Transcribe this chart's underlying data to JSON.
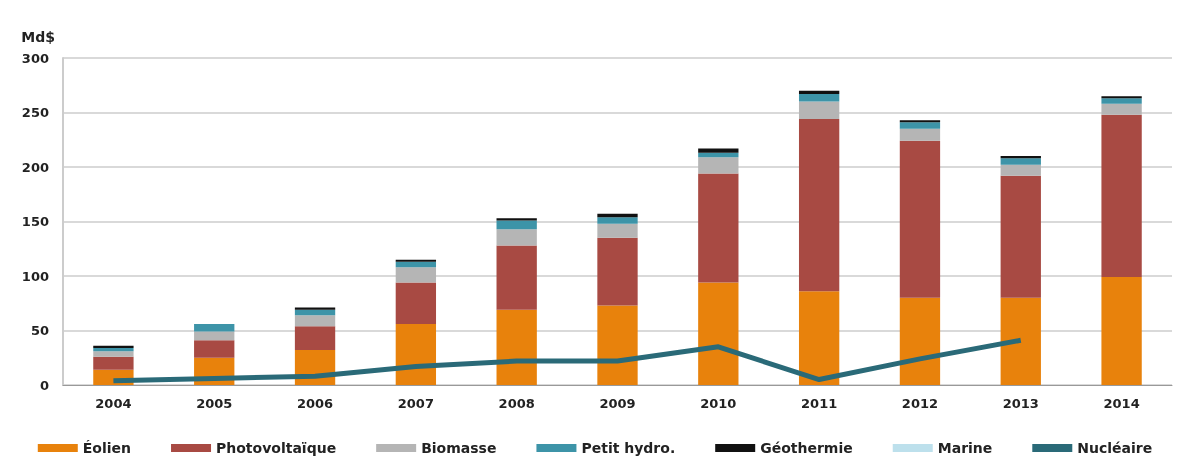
{
  "chart_data": {
    "type": "bar",
    "stacked": true,
    "ylabel": "Md$",
    "categories": [
      "2004",
      "2005",
      "2006",
      "2007",
      "2008",
      "2009",
      "2010",
      "2011",
      "2012",
      "2013",
      "2014"
    ],
    "ylim": [
      0,
      300
    ],
    "yticks": [
      0,
      50,
      100,
      150,
      200,
      250,
      300
    ],
    "grid": "y",
    "legend": "bottom",
    "series": [
      {
        "name": "Éolien",
        "color": "#e8820c",
        "values": [
          14,
          25,
          32,
          56,
          69,
          73,
          94,
          86,
          80,
          80,
          99
        ]
      },
      {
        "name": "Photovoltaïque",
        "color": "#a84a43",
        "values": [
          12,
          16,
          22,
          38,
          59,
          62,
          100,
          158,
          144,
          112,
          149
        ]
      },
      {
        "name": "Biomasse",
        "color": "#b5b5b5",
        "values": [
          5,
          8,
          10,
          14,
          15,
          13,
          15,
          16,
          11,
          10,
          10
        ]
      },
      {
        "name": "Petit hydro.",
        "color": "#3d94a8",
        "values": [
          3,
          7,
          5,
          5,
          8,
          6,
          4,
          7,
          6,
          6,
          5
        ]
      },
      {
        "name": "Géothermie",
        "color": "#111111",
        "values": [
          2,
          0,
          2,
          2,
          2,
          3,
          4,
          3,
          2,
          2,
          2
        ]
      },
      {
        "name": "Marine",
        "color": "#bde0ec",
        "values": [
          0,
          0,
          0,
          0,
          0,
          0,
          0,
          0,
          0,
          0,
          0
        ]
      },
      {
        "name": "Nucléaire",
        "type": "line",
        "color": "#2a6a78",
        "values": [
          4,
          6,
          8,
          17,
          22,
          22,
          35,
          5,
          24,
          41,
          null
        ]
      }
    ]
  }
}
